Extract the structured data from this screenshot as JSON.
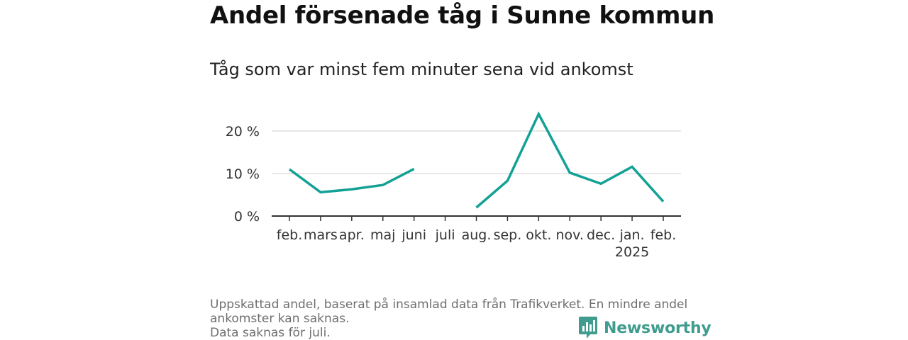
{
  "header": {
    "title": "Andel försenade tåg i Sunne kommun",
    "subtitle": "Tåg som var minst fem minuter sena vid ankomst"
  },
  "chart_data": {
    "type": "line",
    "categories": [
      "feb.",
      "mars",
      "apr.",
      "maj",
      "juni",
      "juli",
      "aug.",
      "sep.",
      "okt.",
      "nov.",
      "dec.",
      "jan.",
      "feb."
    ],
    "category_sublabels": [
      "",
      "",
      "",
      "",
      "",
      "",
      "",
      "",
      "",
      "",
      "",
      "2025",
      ""
    ],
    "series": [
      {
        "values": [
          11.0,
          5.6,
          6.3,
          7.3,
          11.1,
          null,
          2.0,
          8.3,
          24.0,
          10.2,
          7.6,
          11.6,
          3.4
        ]
      }
    ],
    "ylim": [
      0,
      25
    ],
    "yticks": [
      0,
      10,
      20
    ],
    "ytick_labels": [
      "0 %",
      "10 %",
      "20 %"
    ],
    "grid": true,
    "line_color": "#14a195"
  },
  "footnote": {
    "line1": "Uppskattad andel, baserat på insamlad data från Trafikverket. En mindre andel",
    "line2": "ankomster kan saknas.",
    "line3": "Data saknas för juli."
  },
  "brand": {
    "name": "Newsworthy",
    "icon": "newsworthy-logo-icon",
    "color": "#3f9c8e"
  }
}
